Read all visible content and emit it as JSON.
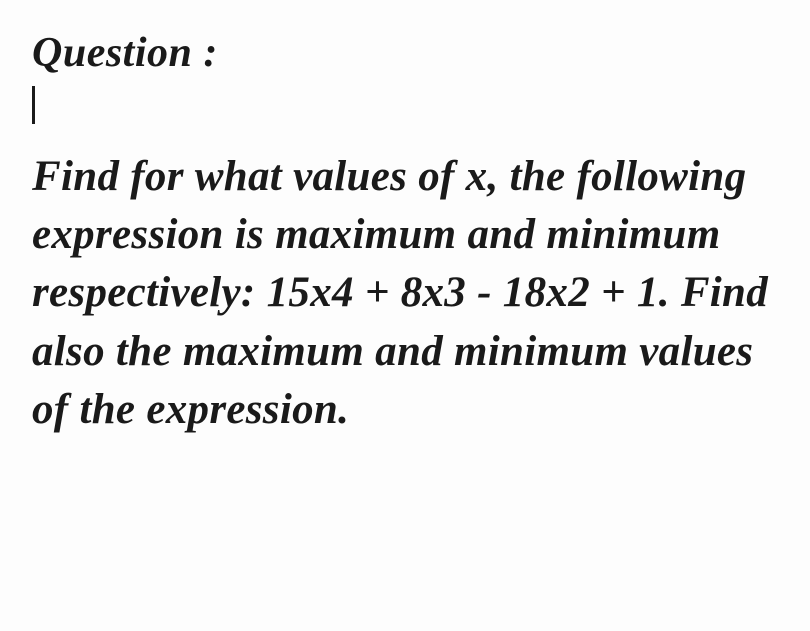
{
  "document": {
    "heading": "Question :",
    "body": "Find for what values of x, the following expression is maximum and minimum respectively: 15x4 + 8x3 - 18x2 + 1. Find also the maximum and minimum values of the expression.",
    "font_family": "cursive",
    "font_style": "italic",
    "font_weight": "bold",
    "text_color": "#1a1a1a",
    "background_color": "#fdfdfd",
    "heading_fontsize": 42,
    "body_fontsize": 43,
    "cursor_visible": true
  }
}
